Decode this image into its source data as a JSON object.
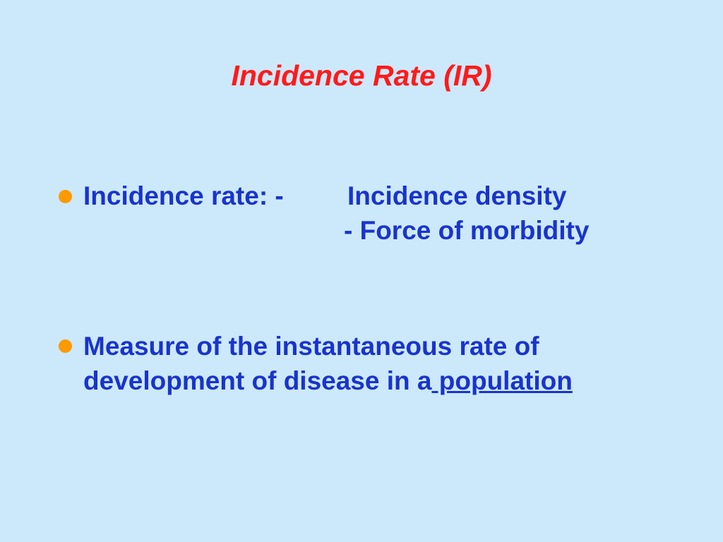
{
  "slide": {
    "title": "Incidence Rate (IR)",
    "bullets": [
      {
        "label": "Incidence rate: -",
        "items": [
          "Incidence density",
          "- Force of morbidity"
        ]
      },
      {
        "text": "Measure of the instantaneous rate of development of disease in a",
        "link": " population"
      }
    ]
  }
}
